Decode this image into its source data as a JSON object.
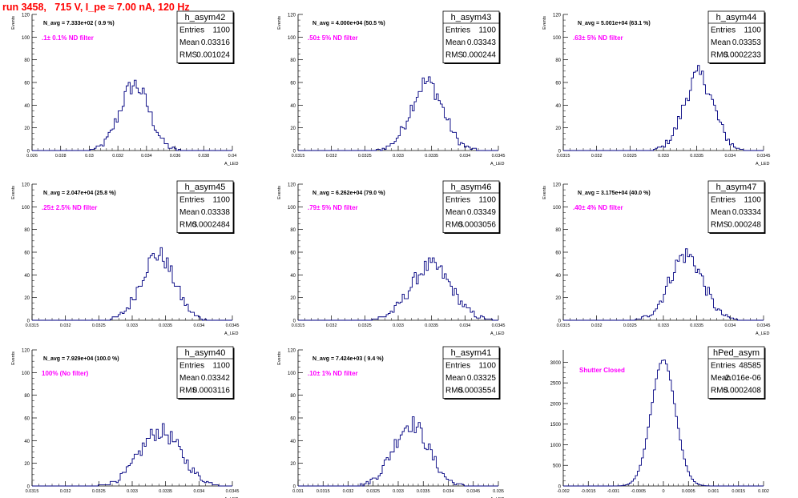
{
  "page": {
    "title": "run 3458,   715 V, I_pe ≈ 7.00 nA, 120 Hz"
  },
  "colors": {
    "title": "#ff0000",
    "filter_label": "#ff00ff",
    "histogram_line": "#000080",
    "axis": "#000000",
    "background": "#ffffff"
  },
  "chart_data": [
    {
      "type": "histogram",
      "name": "h_asym42",
      "avg_label": "N_avg = 7.333e+02 ( 0.9 %)",
      "filter_label": ".1± 0.1% ND filter",
      "stats": [
        [
          "Entries",
          "1100"
        ],
        [
          "Mean",
          "0.03316"
        ],
        [
          "RMS",
          "0.001024"
        ]
      ],
      "ylabel": "Events",
      "xlabel": "A_LED",
      "xlim": [
        0.026,
        0.04
      ],
      "ylim": [
        0,
        120
      ],
      "xticks": [
        "0.026",
        "0.028",
        "0.03",
        "0.032",
        "0.034",
        "0.036",
        "0.038",
        "0.04"
      ],
      "yticks": [
        "0",
        "20",
        "40",
        "60",
        "80",
        "100",
        "120"
      ],
      "mean": 0.03316,
      "rms": 0.001024,
      "peak": 58
    },
    {
      "type": "histogram",
      "name": "h_asym43",
      "avg_label": "N_avg = 4.000e+04 (50.5 %)",
      "filter_label": ".50± 5% ND filter",
      "stats": [
        [
          "Entries",
          "1100"
        ],
        [
          "Mean",
          "0.03343"
        ],
        [
          "RMS",
          "0.000244"
        ]
      ],
      "ylabel": "Events",
      "xlabel": "A_LED",
      "xlim": [
        0.0315,
        0.0345
      ],
      "ylim": [
        0,
        120
      ],
      "xticks": [
        "0.0315",
        "0.032",
        "0.0325",
        "0.033",
        "0.0335",
        "0.034",
        "0.0345"
      ],
      "yticks": [
        "0",
        "20",
        "40",
        "60",
        "80",
        "100",
        "120"
      ],
      "mean": 0.03343,
      "rms": 0.000244,
      "peak": 60
    },
    {
      "type": "histogram",
      "name": "h_asym44",
      "avg_label": "N_avg = 5.001e+04 (63.1 %)",
      "filter_label": ".63± 5% ND filter",
      "stats": [
        [
          "Entries",
          "1100"
        ],
        [
          "Mean",
          "0.03353"
        ],
        [
          "RMS",
          "0.0002233"
        ]
      ],
      "ylabel": "Events",
      "xlabel": "A_LED",
      "xlim": [
        0.0315,
        0.0345
      ],
      "ylim": [
        0,
        120
      ],
      "xticks": [
        "0.0315",
        "0.032",
        "0.0325",
        "0.033",
        "0.0335",
        "0.034",
        "0.0345"
      ],
      "yticks": [
        "0",
        "20",
        "40",
        "60",
        "80",
        "100",
        "120"
      ],
      "mean": 0.03353,
      "rms": 0.0002233,
      "peak": 66
    },
    {
      "type": "histogram",
      "name": "h_asym45",
      "avg_label": "N_avg = 2.047e+04 (25.8 %)",
      "filter_label": ".25± 2.5% ND filter",
      "stats": [
        [
          "Entries",
          "1100"
        ],
        [
          "Mean",
          "0.03338"
        ],
        [
          "RMS",
          "0.0002484"
        ]
      ],
      "ylabel": "Events",
      "xlabel": "A_LED",
      "xlim": [
        0.0315,
        0.0345
      ],
      "ylim": [
        0,
        120
      ],
      "xticks": [
        "0.0315",
        "0.032",
        "0.0325",
        "0.033",
        "0.0335",
        "0.034",
        "0.0345"
      ],
      "yticks": [
        "0",
        "20",
        "40",
        "60",
        "80",
        "100",
        "120"
      ],
      "mean": 0.03338,
      "rms": 0.0002484,
      "peak": 58
    },
    {
      "type": "histogram",
      "name": "h_asym46",
      "avg_label": "N_avg = 6.262e+04 (79.0 %)",
      "filter_label": ".79± 5% ND filter",
      "stats": [
        [
          "Entries",
          "1100"
        ],
        [
          "Mean",
          "0.03349"
        ],
        [
          "RMS",
          "0.0003056"
        ]
      ],
      "ylabel": "Events",
      "xlabel": "A_LED",
      "xlim": [
        0.0315,
        0.0345
      ],
      "ylim": [
        0,
        120
      ],
      "xticks": [
        "0.0315",
        "0.032",
        "0.0325",
        "0.033",
        "0.0335",
        "0.034",
        "0.0345"
      ],
      "yticks": [
        "0",
        "20",
        "40",
        "60",
        "80",
        "100",
        "120"
      ],
      "mean": 0.03349,
      "rms": 0.0003056,
      "peak": 48
    },
    {
      "type": "histogram",
      "name": "h_asym47",
      "avg_label": "N_avg = 3.175e+04 (40.0 %)",
      "filter_label": ".40± 4% ND filter",
      "stats": [
        [
          "Entries",
          "1100"
        ],
        [
          "Mean",
          "0.03334"
        ],
        [
          "RMS",
          "0.000248"
        ]
      ],
      "ylabel": "Events",
      "xlabel": "A_LED",
      "xlim": [
        0.0315,
        0.0345
      ],
      "ylim": [
        0,
        120
      ],
      "xticks": [
        "0.0315",
        "0.032",
        "0.0325",
        "0.033",
        "0.0335",
        "0.034",
        "0.0345"
      ],
      "yticks": [
        "0",
        "20",
        "40",
        "60",
        "80",
        "100",
        "120"
      ],
      "mean": 0.03334,
      "rms": 0.000248,
      "peak": 58
    },
    {
      "type": "histogram",
      "name": "h_asym40",
      "avg_label": "N_avg = 7.929e+04 (100.0 %)",
      "filter_label": "100% (No filter)",
      "stats": [
        [
          "Entries",
          "1100"
        ],
        [
          "Mean",
          "0.03342"
        ],
        [
          "RMS",
          "0.0003116"
        ]
      ],
      "ylabel": "Events",
      "xlabel": "A_LED",
      "xlim": [
        0.0315,
        0.0345
      ],
      "ylim": [
        0,
        120
      ],
      "xticks": [
        "0.0315",
        "0.032",
        "0.0325",
        "0.033",
        "0.0335",
        "0.034",
        "0.0345"
      ],
      "yticks": [
        "0",
        "20",
        "40",
        "60",
        "80",
        "100",
        "120"
      ],
      "mean": 0.03342,
      "rms": 0.0003116,
      "peak": 48
    },
    {
      "type": "histogram",
      "name": "h_asym41",
      "avg_label": "N_avg = 7.424e+03 ( 9.4 %)",
      "filter_label": ".10± 1% ND filter",
      "stats": [
        [
          "Entries",
          "1100"
        ],
        [
          "Mean",
          "0.03325"
        ],
        [
          "RMS",
          "0.0003554"
        ]
      ],
      "ylabel": "Events",
      "xlabel": "A_LED",
      "xlim": [
        0.031,
        0.035
      ],
      "ylim": [
        0,
        120
      ],
      "xticks": [
        "0.031",
        "0.0315",
        "0.032",
        "0.0325",
        "0.033",
        "0.0335",
        "0.034",
        "0.0345",
        "0.035"
      ],
      "yticks": [
        "0",
        "20",
        "40",
        "60",
        "80",
        "100",
        "120"
      ],
      "mean": 0.03325,
      "rms": 0.0003554,
      "peak": 55
    },
    {
      "type": "histogram",
      "name": "hPed_asym",
      "avg_label": "",
      "filter_label": "Shutter Closed",
      "stats": [
        [
          "Entries",
          "48585"
        ],
        [
          "Mean",
          "-2.016e-06"
        ],
        [
          "RMS",
          "0.0002408"
        ]
      ],
      "ylabel": "",
      "xlabel": "",
      "xlim": [
        -0.002,
        0.002
      ],
      "ylim": [
        0,
        3300
      ],
      "xticks": [
        "-0.002",
        "-0.0015",
        "-0.001",
        "-0.0005",
        "0",
        "0.0005",
        "0.001",
        "0.0015",
        "0.002"
      ],
      "yticks": [
        "0",
        "500",
        "1000",
        "1500",
        "2000",
        "2500",
        "3000"
      ],
      "mean": -2.016e-06,
      "rms": 0.0002408,
      "peak": 3060
    }
  ]
}
